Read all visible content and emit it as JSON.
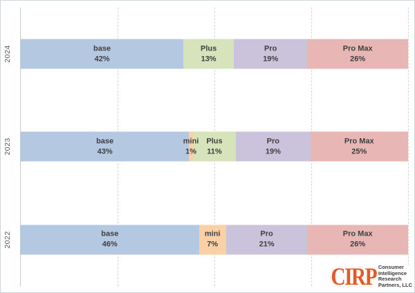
{
  "chart_data": {
    "type": "bar",
    "orientation": "horizontal",
    "stacked": true,
    "title": "",
    "xlabel": "",
    "ylabel": "",
    "categories": [
      "2024",
      "2023",
      "2022"
    ],
    "segment_names": [
      "base",
      "mini",
      "Plus",
      "Pro",
      "Pro Max"
    ],
    "colors": {
      "base": "#B5C8E2",
      "mini": "#FBD0A4",
      "Plus": "#D6E3BB",
      "Pro": "#CBC2DC",
      "Pro Max": "#E7B6B5"
    },
    "rows": [
      {
        "category": "2024",
        "segments": [
          {
            "name": "base",
            "pct": 42
          },
          {
            "name": "Plus",
            "pct": 13
          },
          {
            "name": "Pro",
            "pct": 19
          },
          {
            "name": "Pro Max",
            "pct": 26
          }
        ]
      },
      {
        "category": "2023",
        "segments": [
          {
            "name": "base",
            "pct": 43
          },
          {
            "name": "mini",
            "pct": 1
          },
          {
            "name": "Plus",
            "pct": 11
          },
          {
            "name": "Pro",
            "pct": 19
          },
          {
            "name": "Pro Max",
            "pct": 25
          }
        ]
      },
      {
        "category": "2022",
        "segments": [
          {
            "name": "base",
            "pct": 46
          },
          {
            "name": "mini",
            "pct": 7
          },
          {
            "name": "Pro",
            "pct": 21
          },
          {
            "name": "Pro Max",
            "pct": 26
          }
        ]
      }
    ],
    "x_axis": {
      "min_pct": 0,
      "max_pct": 100,
      "gridline_pcts": [
        25,
        50,
        75,
        100
      ],
      "gridline_style": "dashed",
      "tick_labels_visible": false
    },
    "legend_position": "none",
    "grid": "vertical-dashed"
  },
  "logo": {
    "abbr": "CIRP",
    "abbr_color": "#E65A25",
    "lines": [
      "Consumer",
      "Intelligence",
      "Research",
      "Partners, LLC"
    ]
  },
  "styles": {
    "label_color": "#3F3F3F",
    "axis_label_color": "#595959",
    "gridline_color": "#D9D9D9",
    "axis_line_color": "#C3CCD6",
    "background": "#FFFFFF",
    "border_color": "#CCD4DD"
  }
}
